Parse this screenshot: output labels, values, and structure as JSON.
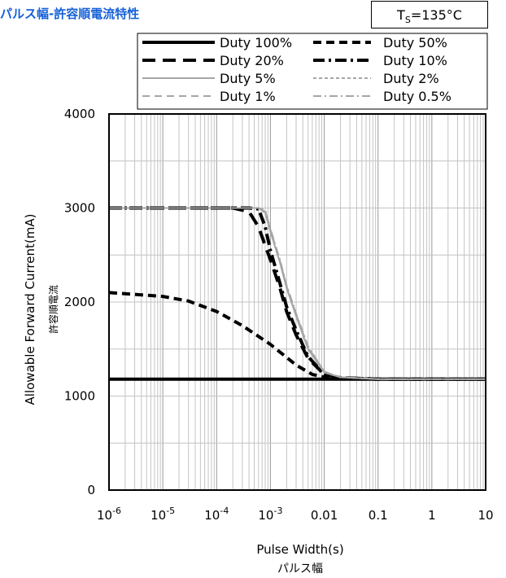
{
  "header": {
    "title": "パルス幅-許容順電流特性",
    "temperature_prefix": "T",
    "temperature_sub": "S",
    "temperature_value": "=135°C"
  },
  "chart_data": {
    "type": "line",
    "title": "",
    "xlabel": "Pulse Width(s)",
    "xlabel_jp": "パルス幅",
    "ylabel": "Allowable Forward Current(mA)",
    "ylabel_jp": "許容順電流",
    "x_scale": "log",
    "xlim": [
      1e-06,
      10
    ],
    "ylim": [
      0,
      4000
    ],
    "grid": true,
    "legend_position": "top",
    "x_ticks": [
      {
        "value": 1e-06,
        "base": "10",
        "exp": "-6"
      },
      {
        "value": 1e-05,
        "base": "10",
        "exp": "-5"
      },
      {
        "value": 0.0001,
        "base": "10",
        "exp": "-4"
      },
      {
        "value": 0.001,
        "base": "10",
        "exp": "-3"
      },
      {
        "value": 0.01,
        "label": "0.01"
      },
      {
        "value": 0.1,
        "label": "0.1"
      },
      {
        "value": 1,
        "label": "1"
      },
      {
        "value": 10,
        "label": "10"
      }
    ],
    "y_ticks": [
      {
        "value": 0,
        "label": "0"
      },
      {
        "value": 1000,
        "label": "1000"
      },
      {
        "value": 2000,
        "label": "2000"
      },
      {
        "value": 3000,
        "label": "3000"
      },
      {
        "value": 4000,
        "label": "4000"
      }
    ],
    "series": [
      {
        "name": "Duty 100%",
        "color": "#000000",
        "style": "solid-thick",
        "x": [
          1e-06,
          10
        ],
        "y": [
          1180,
          1180
        ]
      },
      {
        "name": "Duty 50%",
        "color": "#000000",
        "style": "dash-short-thick",
        "x": [
          1e-06,
          1e-05,
          3e-05,
          0.0001,
          0.0003,
          0.001,
          0.003,
          0.006,
          0.01,
          0.02,
          0.1,
          10
        ],
        "y": [
          2100,
          2060,
          2010,
          1900,
          1750,
          1550,
          1330,
          1230,
          1200,
          1185,
          1180,
          1180
        ]
      },
      {
        "name": "Duty 20%",
        "color": "#000000",
        "style": "dash-long-thick",
        "x": [
          1e-06,
          0.0001,
          0.0002,
          0.0004,
          0.0006,
          0.0008,
          0.001,
          0.0015,
          0.002,
          0.003,
          0.005,
          0.01,
          0.02,
          0.1,
          10
        ],
        "y": [
          3000,
          3000,
          3000,
          2960,
          2800,
          2600,
          2450,
          2150,
          1900,
          1650,
          1400,
          1230,
          1195,
          1180,
          1180
        ]
      },
      {
        "name": "Duty 10%",
        "color": "#000000",
        "style": "dashdot-thick",
        "x": [
          1e-06,
          0.0001,
          0.0004,
          0.0006,
          0.0008,
          0.001,
          0.0015,
          0.002,
          0.003,
          0.005,
          0.01,
          0.02,
          0.1,
          10
        ],
        "y": [
          3000,
          3000,
          3000,
          2990,
          2800,
          2550,
          2200,
          1950,
          1700,
          1420,
          1230,
          1195,
          1180,
          1180
        ]
      },
      {
        "name": "Duty 5%",
        "color": "#a6a6a6",
        "style": "solid",
        "x": [
          1e-06,
          0.0001,
          0.0006,
          0.0008,
          0.001,
          0.0015,
          0.002,
          0.003,
          0.005,
          0.01,
          0.02,
          0.1,
          10
        ],
        "y": [
          3000,
          3000,
          3000,
          2950,
          2750,
          2420,
          2150,
          1850,
          1500,
          1250,
          1200,
          1180,
          1180
        ]
      },
      {
        "name": "Duty 2%",
        "color": "#a6a6a6",
        "style": "dash-short",
        "x": [
          1e-06,
          0.0001,
          0.0006,
          0.0008,
          0.001,
          0.0015,
          0.002,
          0.003,
          0.005,
          0.01,
          0.02,
          0.1,
          10
        ],
        "y": [
          3000,
          3000,
          3000,
          2960,
          2760,
          2430,
          2160,
          1860,
          1510,
          1250,
          1200,
          1180,
          1180
        ]
      },
      {
        "name": "Duty 1%",
        "color": "#a6a6a6",
        "style": "dash-long",
        "x": [
          1e-06,
          0.0001,
          0.0006,
          0.0008,
          0.001,
          0.0015,
          0.002,
          0.003,
          0.005,
          0.01,
          0.02,
          0.1,
          10
        ],
        "y": [
          3000,
          3000,
          3000,
          2970,
          2770,
          2440,
          2170,
          1870,
          1520,
          1260,
          1200,
          1180,
          1180
        ]
      },
      {
        "name": "Duty 0.5%",
        "color": "#a6a6a6",
        "style": "dashdot",
        "x": [
          1e-06,
          0.0001,
          0.0006,
          0.0008,
          0.001,
          0.0015,
          0.002,
          0.003,
          0.005,
          0.01,
          0.02,
          0.1,
          10
        ],
        "y": [
          3000,
          3000,
          3000,
          2980,
          2780,
          2450,
          2180,
          1880,
          1530,
          1260,
          1200,
          1180,
          1180
        ]
      }
    ]
  }
}
